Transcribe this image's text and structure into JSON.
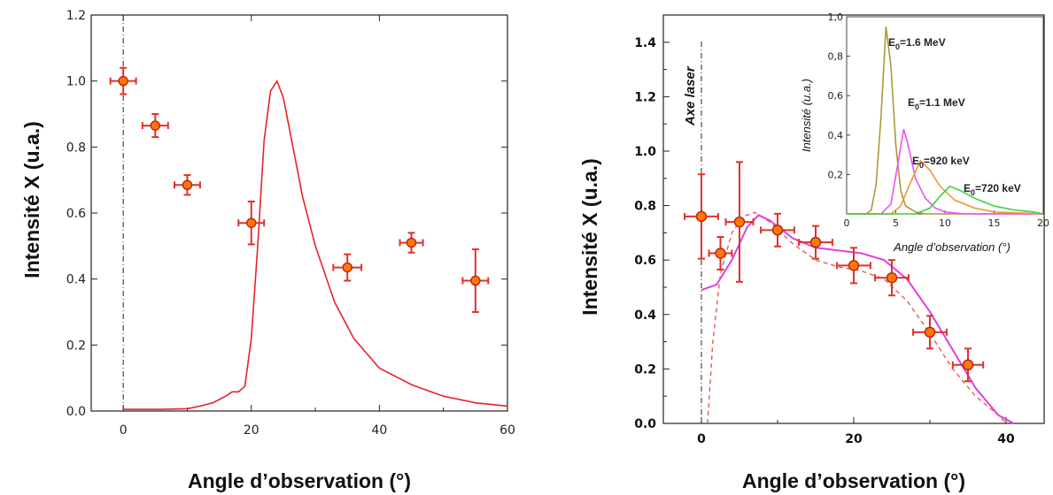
{
  "chart_data": [
    {
      "type": "scatter",
      "xlabel": "Angle d’observation (°)",
      "ylabel": "Intensité X (u.a.)",
      "xlim": [
        -5,
        60
      ],
      "ylim": [
        0,
        1.2
      ],
      "xticks": [
        "0",
        "20",
        "40",
        "60"
      ],
      "yticks": [
        "0.0",
        "0.2",
        "0.4",
        "0.6",
        "0.8",
        "1.0",
        "1.2"
      ],
      "vline_x": 0,
      "colors": {
        "points": "#ff7a00",
        "errorbars": "#e0312b",
        "curve": "#e8232a"
      },
      "points": [
        {
          "x": 0,
          "y": 1.0,
          "xerr": 2,
          "yerr": 0.04
        },
        {
          "x": 5,
          "y": 0.865,
          "xerr": 2,
          "yerr": 0.035
        },
        {
          "x": 10,
          "y": 0.685,
          "xerr": 2,
          "yerr": 0.03
        },
        {
          "x": 20,
          "y": 0.57,
          "xerr": 2,
          "yerr": 0.065
        },
        {
          "x": 35,
          "y": 0.435,
          "xerr": 2.2,
          "yerr": 0.04
        },
        {
          "x": 45,
          "y": 0.51,
          "xerr": 1.8,
          "yerr": 0.03
        },
        {
          "x": 55,
          "y": 0.395,
          "xerr": 2,
          "yerr": 0.095
        }
      ],
      "curve": [
        [
          0,
          0.005
        ],
        [
          6,
          0.005
        ],
        [
          10,
          0.007
        ],
        [
          12,
          0.015
        ],
        [
          14,
          0.025
        ],
        [
          16,
          0.045
        ],
        [
          17,
          0.058
        ],
        [
          18,
          0.058
        ],
        [
          19,
          0.075
        ],
        [
          20,
          0.22
        ],
        [
          21,
          0.5
        ],
        [
          22,
          0.82
        ],
        [
          23,
          0.97
        ],
        [
          24,
          1.0
        ],
        [
          25,
          0.95
        ],
        [
          26,
          0.85
        ],
        [
          28,
          0.65
        ],
        [
          30,
          0.5
        ],
        [
          33,
          0.33
        ],
        [
          36,
          0.22
        ],
        [
          40,
          0.13
        ],
        [
          45,
          0.08
        ],
        [
          50,
          0.045
        ],
        [
          55,
          0.025
        ],
        [
          60,
          0.015
        ]
      ]
    },
    {
      "type": "scatter",
      "xlabel": "Angle d’observation (°)",
      "ylabel": "Intensité X (u.a.)",
      "xlim": [
        -5,
        45
      ],
      "ylim": [
        0,
        1.5
      ],
      "xticks": [
        "0",
        "20",
        "40"
      ],
      "yticks": [
        "0.0",
        "0.2",
        "0.4",
        "0.6",
        "0.8",
        "1.0",
        "1.2",
        "1.4"
      ],
      "vline_x": 0,
      "vline_label": "Axe laser",
      "colors": {
        "points": "#ff7a00",
        "errorbars": "#e0312b",
        "fit": "#e040e0",
        "dashed": "#e85a5a"
      },
      "points": [
        {
          "x": 0,
          "y": 0.76,
          "xerr": 2.2,
          "yerr": 0.155
        },
        {
          "x": 2.5,
          "y": 0.625,
          "xerr": 1.5,
          "yerr": 0.06
        },
        {
          "x": 5,
          "y": 0.74,
          "xerr": 1.8,
          "yerr": 0.22
        },
        {
          "x": 10,
          "y": 0.71,
          "xerr": 2.2,
          "yerr": 0.06
        },
        {
          "x": 15,
          "y": 0.665,
          "xerr": 2.2,
          "yerr": 0.06
        },
        {
          "x": 20,
          "y": 0.58,
          "xerr": 2.2,
          "yerr": 0.065
        },
        {
          "x": 25,
          "y": 0.535,
          "xerr": 2.2,
          "yerr": 0.065
        },
        {
          "x": 30,
          "y": 0.335,
          "xerr": 2.2,
          "yerr": 0.06
        },
        {
          "x": 35,
          "y": 0.215,
          "xerr": 2.0,
          "yerr": 0.06
        }
      ],
      "fit_curve": [
        [
          0,
          0.49
        ],
        [
          2,
          0.51
        ],
        [
          4,
          0.6
        ],
        [
          6,
          0.72
        ],
        [
          7.5,
          0.765
        ],
        [
          9,
          0.745
        ],
        [
          12,
          0.68
        ],
        [
          15,
          0.645
        ],
        [
          18,
          0.635
        ],
        [
          21,
          0.625
        ],
        [
          24,
          0.6
        ],
        [
          27,
          0.53
        ],
        [
          30,
          0.41
        ],
        [
          33,
          0.27
        ],
        [
          36,
          0.13
        ],
        [
          39,
          0.03
        ],
        [
          41,
          0
        ]
      ],
      "dashed_curve": [
        [
          0.8,
          0
        ],
        [
          1.5,
          0.3
        ],
        [
          2.5,
          0.55
        ],
        [
          4,
          0.7
        ],
        [
          5.5,
          0.76
        ],
        [
          7,
          0.775
        ],
        [
          9,
          0.74
        ],
        [
          12,
          0.66
        ],
        [
          15,
          0.6
        ],
        [
          18,
          0.575
        ],
        [
          21,
          0.56
        ],
        [
          24,
          0.53
        ],
        [
          27,
          0.45
        ],
        [
          30,
          0.33
        ],
        [
          33,
          0.2
        ],
        [
          36,
          0.1
        ],
        [
          39,
          0.03
        ],
        [
          40,
          0
        ]
      ]
    },
    {
      "type": "line",
      "xlabel": "Angle d’observation (°)",
      "ylabel": "Intensité (u.a.)",
      "xlim": [
        0,
        20
      ],
      "ylim": [
        0,
        1.0
      ],
      "xticks": [
        "0",
        "5",
        "10",
        "15",
        "20"
      ],
      "yticks": [
        "0,2",
        "0,4",
        "0,6",
        "0,8",
        "1,0"
      ],
      "series": [
        {
          "name_prefix": "E",
          "name_sub": "0",
          "name_suffix": "=1.6 MeV",
          "color": "#a89a3a",
          "points": [
            [
              0,
              0
            ],
            [
              2,
              0
            ],
            [
              2.5,
              0.02
            ],
            [
              3,
              0.15
            ],
            [
              3.5,
              0.5
            ],
            [
              4,
              0.95
            ],
            [
              4.5,
              0.75
            ],
            [
              5,
              0.35
            ],
            [
              5.5,
              0.12
            ],
            [
              6,
              0.04
            ],
            [
              7,
              0.01
            ],
            [
              8,
              0
            ],
            [
              20,
              0
            ]
          ]
        },
        {
          "name_prefix": "E",
          "name_sub": "0",
          "name_suffix": "=1.1 MeV",
          "color": "#f050f0",
          "points": [
            [
              0,
              0
            ],
            [
              3.5,
              0
            ],
            [
              4.5,
              0.05
            ],
            [
              5.2,
              0.25
            ],
            [
              5.8,
              0.43
            ],
            [
              6.2,
              0.36
            ],
            [
              7,
              0.18
            ],
            [
              8,
              0.08
            ],
            [
              9,
              0.03
            ],
            [
              10,
              0.01
            ],
            [
              12,
              0
            ],
            [
              20,
              0
            ]
          ]
        },
        {
          "name_prefix": "E",
          "name_sub": "0",
          "name_suffix": "=920 keV",
          "color": "#e89a3a",
          "points": [
            [
              0,
              0
            ],
            [
              4.5,
              0
            ],
            [
              5.5,
              0.04
            ],
            [
              6.5,
              0.16
            ],
            [
              7.5,
              0.27
            ],
            [
              8.5,
              0.22
            ],
            [
              9.5,
              0.14
            ],
            [
              11,
              0.07
            ],
            [
              13,
              0.03
            ],
            [
              15,
              0.01
            ],
            [
              20,
              0
            ]
          ]
        },
        {
          "name_prefix": "E",
          "name_sub": "0",
          "name_suffix": "=720 keV",
          "color": "#3ad23a",
          "points": [
            [
              0,
              0
            ],
            [
              7,
              0
            ],
            [
              8.5,
              0.03
            ],
            [
              9.5,
              0.09
            ],
            [
              10.5,
              0.14
            ],
            [
              11.5,
              0.12
            ],
            [
              13,
              0.08
            ],
            [
              15,
              0.04
            ],
            [
              17,
              0.02
            ],
            [
              19,
              0.01
            ],
            [
              20,
              0
            ]
          ]
        }
      ]
    }
  ]
}
